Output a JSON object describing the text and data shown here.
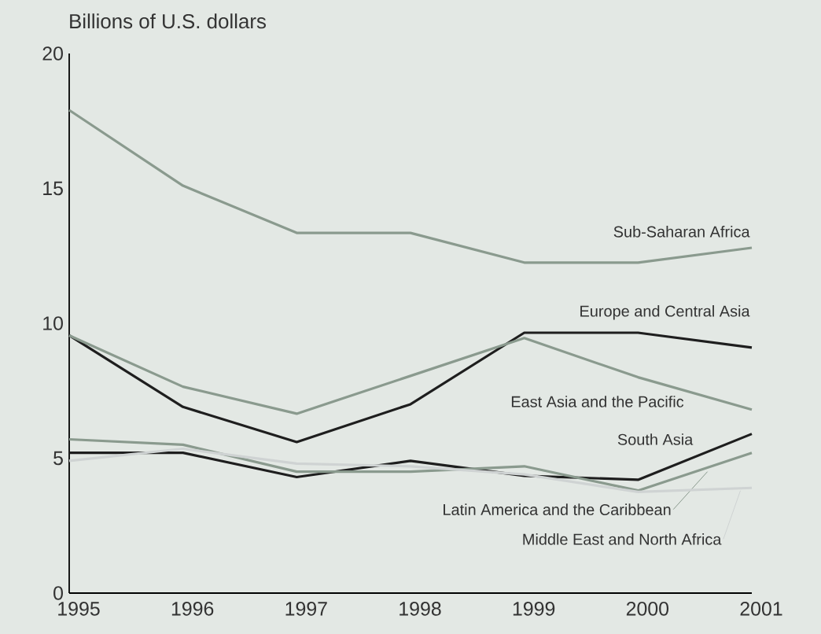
{
  "chart_data": {
    "type": "line",
    "ylabel": "Billions of U.S. dollars",
    "categories": [
      "1995",
      "1996",
      "1997",
      "1998",
      "1999",
      "2000",
      "2001"
    ],
    "ylim": [
      0,
      20
    ],
    "yticks": [
      0,
      5,
      10,
      15,
      20
    ],
    "grid": false,
    "legend": false,
    "marker": "none",
    "line_style": "solid",
    "series": [
      {
        "name": "Sub-Saharan Africa",
        "color": "#8a9a8e",
        "values": [
          17.9,
          15.1,
          13.35,
          13.35,
          12.25,
          12.25,
          12.8
        ]
      },
      {
        "name": "Europe and Central Asia",
        "color": "#1e1e1e",
        "values": [
          9.55,
          6.9,
          5.6,
          7.0,
          9.65,
          9.65,
          9.1
        ]
      },
      {
        "name": "East Asia and the Pacific",
        "color": "#8a9a8e",
        "values": [
          9.55,
          7.65,
          6.65,
          8.05,
          9.45,
          8.0,
          6.8
        ]
      },
      {
        "name": "South Asia",
        "color": "#1e1e1e",
        "values": [
          5.2,
          5.2,
          4.3,
          4.9,
          4.35,
          4.2,
          5.9
        ]
      },
      {
        "name": "Latin America and the Caribbean",
        "color": "#8a9a8e",
        "values": [
          5.7,
          5.5,
          4.5,
          4.5,
          4.7,
          3.8,
          5.2
        ]
      },
      {
        "name": "Middle East and North Africa",
        "color": "#cfd3d3",
        "values": [
          4.9,
          5.35,
          4.8,
          4.7,
          4.4,
          3.75,
          3.9
        ]
      }
    ]
  }
}
